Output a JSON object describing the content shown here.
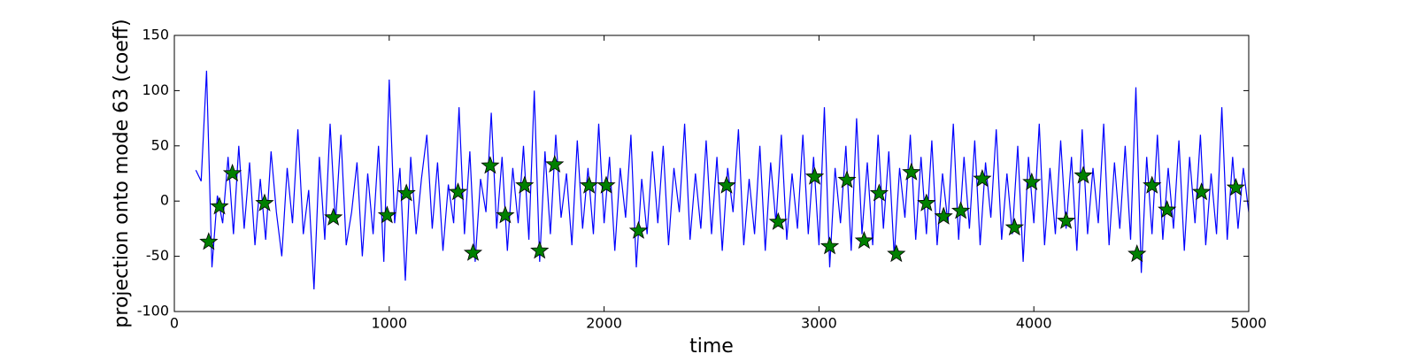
{
  "chart_data": {
    "type": "line",
    "ylabel": "projection onto mode 63 (coeff)",
    "xlabel": "time",
    "xlim": [
      0,
      5000
    ],
    "xticks": [
      0,
      1000,
      2000,
      3000,
      4000,
      5000
    ],
    "ylim": [
      -100,
      150
    ],
    "yticks": [
      -100,
      -50,
      0,
      50,
      100,
      150
    ],
    "series": [
      {
        "type": "line",
        "color": "#0000ff",
        "x": [
          100,
          125,
          150,
          175,
          200,
          225,
          250,
          275,
          300,
          325,
          350,
          375,
          400,
          425,
          450,
          475,
          500,
          525,
          550,
          575,
          600,
          625,
          650,
          675,
          700,
          725,
          750,
          775,
          800,
          825,
          850,
          875,
          900,
          925,
          950,
          975,
          1000,
          1025,
          1050,
          1075,
          1100,
          1125,
          1150,
          1175,
          1200,
          1225,
          1250,
          1275,
          1300,
          1325,
          1350,
          1375,
          1400,
          1425,
          1450,
          1475,
          1500,
          1525,
          1550,
          1575,
          1600,
          1625,
          1650,
          1675,
          1700,
          1725,
          1750,
          1775,
          1800,
          1825,
          1850,
          1875,
          1900,
          1925,
          1950,
          1975,
          2000,
          2025,
          2050,
          2075,
          2100,
          2125,
          2150,
          2175,
          2200,
          2225,
          2250,
          2275,
          2300,
          2325,
          2350,
          2375,
          2400,
          2425,
          2450,
          2475,
          2500,
          2525,
          2550,
          2575,
          2600,
          2625,
          2650,
          2675,
          2700,
          2725,
          2750,
          2775,
          2800,
          2825,
          2850,
          2875,
          2900,
          2925,
          2950,
          2975,
          3000,
          3025,
          3050,
          3075,
          3100,
          3125,
          3150,
          3175,
          3200,
          3225,
          3250,
          3275,
          3300,
          3325,
          3350,
          3375,
          3400,
          3425,
          3450,
          3475,
          3500,
          3525,
          3550,
          3575,
          3600,
          3625,
          3650,
          3675,
          3700,
          3725,
          3750,
          3775,
          3800,
          3825,
          3850,
          3875,
          3900,
          3925,
          3950,
          3975,
          4000,
          4025,
          4050,
          4075,
          4100,
          4125,
          4150,
          4175,
          4200,
          4225,
          4250,
          4275,
          4300,
          4325,
          4350,
          4375,
          4400,
          4425,
          4450,
          4475,
          4500,
          4525,
          4550,
          4575,
          4600,
          4625,
          4650,
          4675,
          4700,
          4725,
          4750,
          4775,
          4800,
          4825,
          4850,
          4875,
          4900,
          4925,
          4950,
          4975,
          5000
        ],
        "values": [
          28,
          18,
          118,
          -60,
          5,
          -20,
          40,
          -30,
          50,
          -25,
          35,
          -40,
          20,
          -35,
          45,
          -10,
          -50,
          30,
          -20,
          65,
          -30,
          10,
          -80,
          40,
          -35,
          70,
          -20,
          60,
          -40,
          -10,
          35,
          -50,
          25,
          -30,
          50,
          -55,
          110,
          -20,
          30,
          -72,
          40,
          -30,
          20,
          60,
          -25,
          35,
          -45,
          15,
          -20,
          85,
          -30,
          45,
          -55,
          20,
          -10,
          80,
          -25,
          40,
          -45,
          30,
          -20,
          50,
          -35,
          100,
          -55,
          45,
          -30,
          60,
          -15,
          25,
          -40,
          55,
          -25,
          30,
          -30,
          70,
          -20,
          40,
          -45,
          30,
          -15,
          60,
          -60,
          20,
          -30,
          45,
          -20,
          50,
          -40,
          30,
          -10,
          70,
          -35,
          25,
          -25,
          55,
          -30,
          40,
          -45,
          30,
          -10,
          65,
          -40,
          20,
          -30,
          50,
          -45,
          35,
          -20,
          60,
          -35,
          25,
          -25,
          60,
          -30,
          40,
          -40,
          85,
          -60,
          30,
          -20,
          50,
          -45,
          75,
          -30,
          35,
          -40,
          60,
          -25,
          45,
          -50,
          30,
          -15,
          60,
          -35,
          40,
          -30,
          55,
          -40,
          25,
          -20,
          70,
          -35,
          40,
          -25,
          55,
          -40,
          35,
          -15,
          65,
          -35,
          25,
          -30,
          50,
          -55,
          40,
          -20,
          70,
          -40,
          30,
          -30,
          55,
          -25,
          40,
          -45,
          65,
          -30,
          30,
          -20,
          70,
          -40,
          35,
          -25,
          50,
          -35,
          103,
          -65,
          40,
          -30,
          60,
          -35,
          30,
          -25,
          55,
          -45,
          40,
          -20,
          60,
          -40,
          25,
          -30,
          85,
          -35,
          40,
          -25,
          30,
          -10
        ]
      },
      {
        "type": "scatter",
        "marker": "star",
        "color": "#008000",
        "x": [
          160,
          210,
          270,
          420,
          740,
          990,
          1080,
          1320,
          1390,
          1470,
          1540,
          1630,
          1700,
          1770,
          1930,
          2010,
          2160,
          2570,
          2810,
          2980,
          3050,
          3130,
          3210,
          3280,
          3360,
          3430,
          3500,
          3580,
          3660,
          3760,
          3910,
          3990,
          4150,
          4230,
          4480,
          4550,
          4620,
          4780,
          4940
        ],
        "values": [
          -37,
          -5,
          25,
          -2,
          -15,
          -13,
          7,
          8,
          -47,
          32,
          -13,
          14,
          -45,
          33,
          14,
          14,
          -27,
          14,
          -19,
          22,
          -41,
          19,
          -36,
          7,
          -48,
          26,
          -2,
          -14,
          -9,
          20,
          -24,
          17,
          -18,
          23,
          -48,
          14,
          -8,
          8,
          12
        ]
      }
    ]
  }
}
